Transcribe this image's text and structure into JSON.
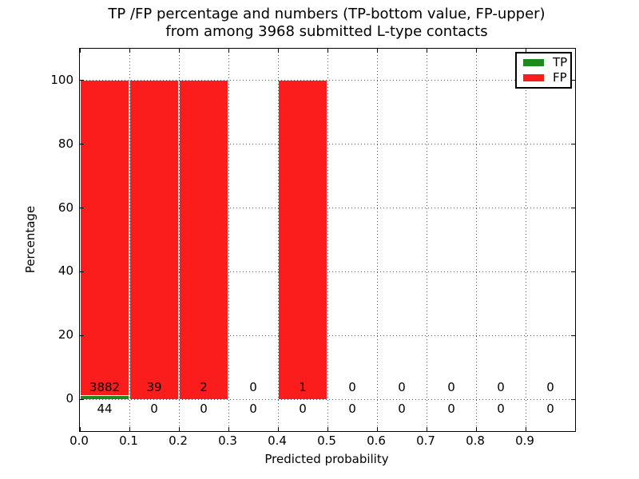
{
  "title": {
    "line1": "TP /FP percentage and numbers (TP-bottom value, FP-upper)",
    "line2": "from among 3968 submitted L-type contacts"
  },
  "axes": {
    "xlabel": "Predicted probability",
    "ylabel": "Percentage",
    "x_tick_labels": [
      "0.0",
      "0.1",
      "0.2",
      "0.3",
      "0.4",
      "0.5",
      "0.6",
      "0.7",
      "0.8",
      "0.9"
    ],
    "y_tick_labels": [
      "0",
      "20",
      "40",
      "60",
      "80",
      "100"
    ],
    "y_tick_values": [
      0,
      20,
      40,
      60,
      80,
      100
    ]
  },
  "legend": {
    "entries": [
      {
        "label": "TP",
        "color": "#1c8a1c"
      },
      {
        "label": "FP",
        "color": "#fb1c1c"
      }
    ]
  },
  "colors": {
    "tp_green": "#1c8a1c",
    "fp_red": "#fb1c1c",
    "grid": "#555",
    "spine": "#000"
  },
  "chart_data": {
    "type": "bar",
    "stacked": true,
    "title": "TP /FP percentage and numbers (TP-bottom value, FP-upper) from among 3968 submitted L-type contacts",
    "xlabel": "Predicted probability",
    "ylabel": "Percentage",
    "total_contacts": 3968,
    "bin_edges": [
      0.0,
      0.1,
      0.2,
      0.3,
      0.4,
      0.5,
      0.6,
      0.7,
      0.8,
      0.9,
      1.0
    ],
    "series": [
      {
        "name": "TP",
        "color": "#1c8a1c",
        "counts": [
          44,
          0,
          0,
          0,
          0,
          0,
          0,
          0,
          0,
          0
        ],
        "percent": [
          1.12,
          0,
          0,
          0,
          0,
          0,
          0,
          0,
          0,
          0
        ]
      },
      {
        "name": "FP",
        "color": "#fb1c1c",
        "counts": [
          3882,
          39,
          2,
          0,
          1,
          0,
          0,
          0,
          0,
          0
        ],
        "percent": [
          98.88,
          100,
          100,
          0,
          100,
          0,
          0,
          0,
          0,
          0
        ]
      }
    ],
    "xlim": [
      0.0,
      1.0
    ],
    "ylim": [
      -10,
      110
    ],
    "grid": "dotted both axes",
    "legend_position": "upper right"
  }
}
